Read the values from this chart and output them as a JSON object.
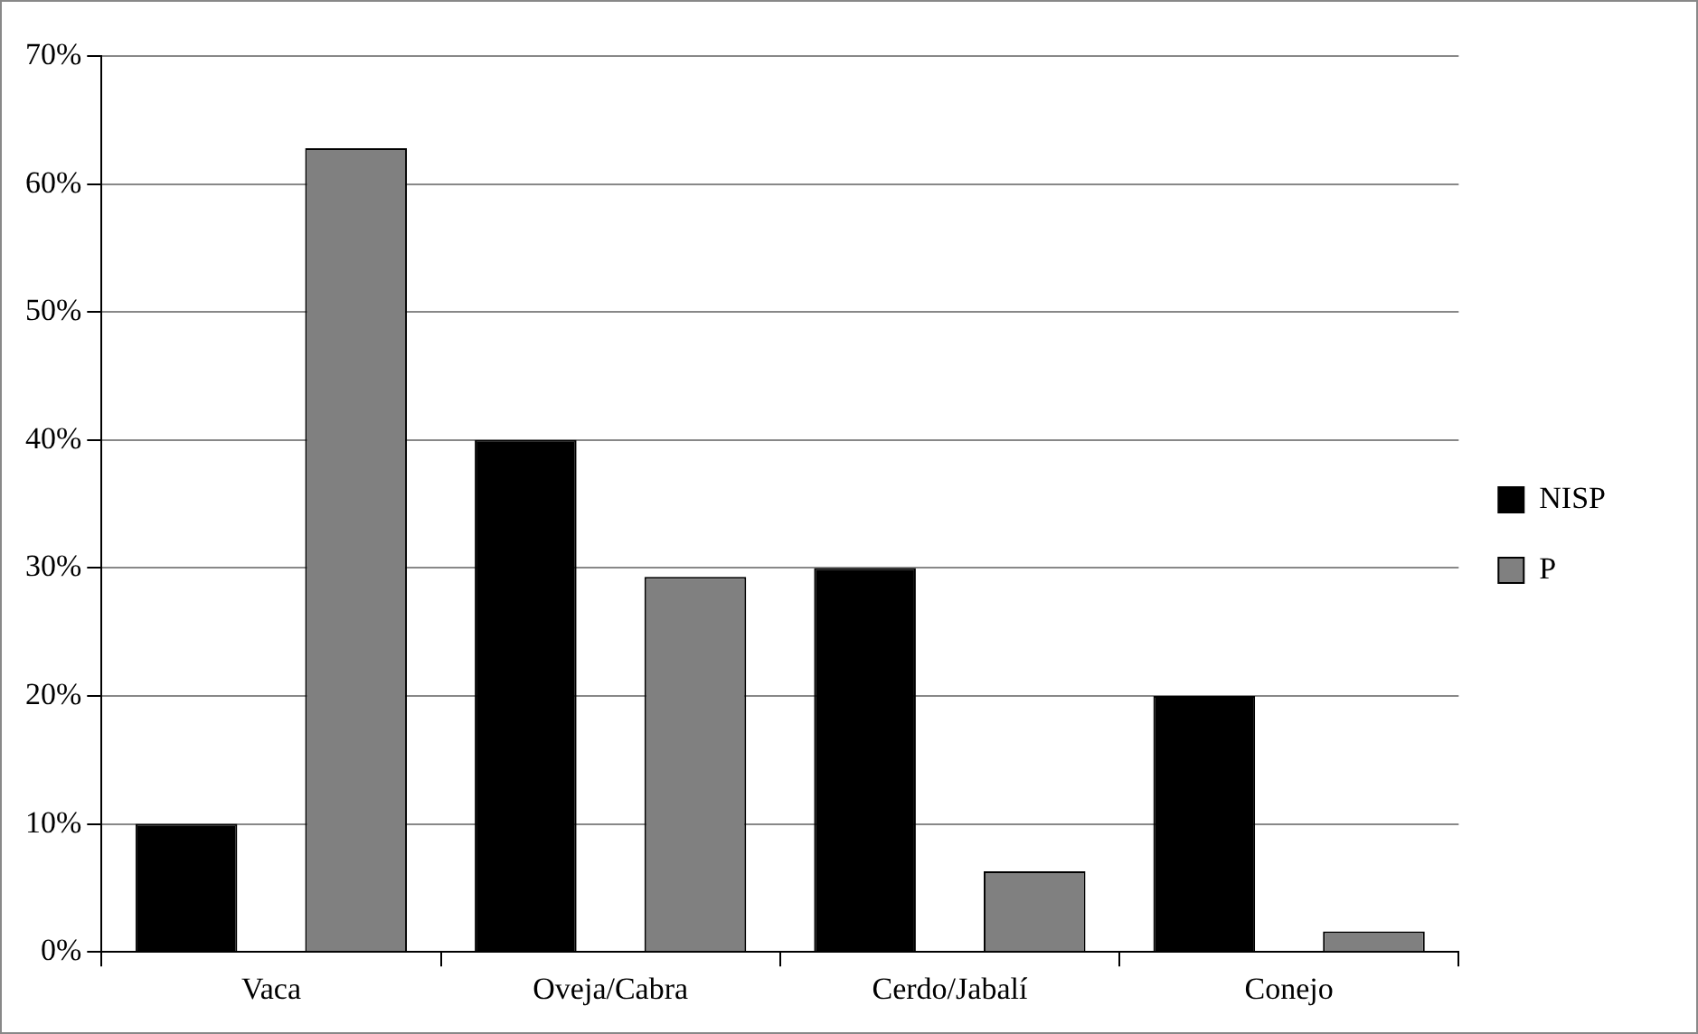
{
  "chart_data": {
    "type": "bar",
    "categories": [
      "Vaca",
      "Oveja/Cabra",
      "Cerdo/Jabalí",
      "Conejo"
    ],
    "series": [
      {
        "name": "NISP",
        "color": "#000000",
        "values": [
          10,
          40,
          30,
          20
        ]
      },
      {
        "name": "P",
        "color": "#808080",
        "values": [
          62.8,
          29.3,
          6.3,
          1.6
        ]
      }
    ],
    "ylim": [
      0,
      70
    ],
    "yticks": [
      {
        "value": 0,
        "label": "0%"
      },
      {
        "value": 10,
        "label": "10%"
      },
      {
        "value": 20,
        "label": "20%"
      },
      {
        "value": 30,
        "label": "30%"
      },
      {
        "value": 40,
        "label": "40%"
      },
      {
        "value": 50,
        "label": "50%"
      },
      {
        "value": 60,
        "label": "60%"
      },
      {
        "value": 70,
        "label": "70%"
      }
    ],
    "grid": "y",
    "legend": "right"
  }
}
